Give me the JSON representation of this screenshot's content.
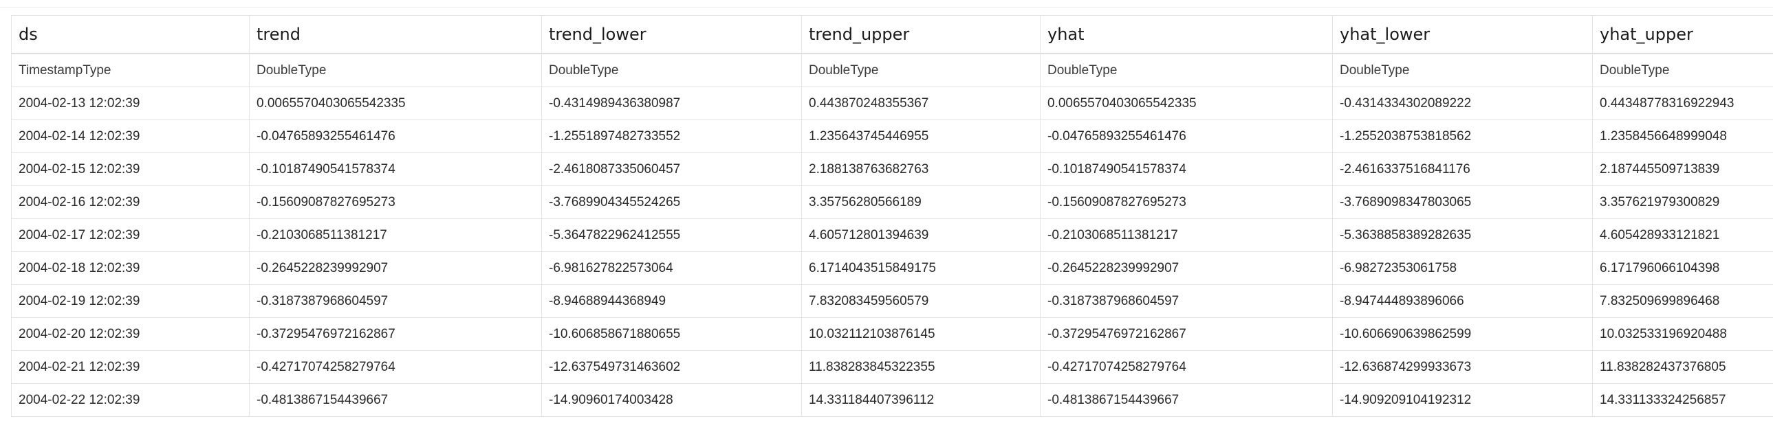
{
  "table": {
    "columns": [
      "ds",
      "trend",
      "trend_lower",
      "trend_upper",
      "yhat",
      "yhat_lower",
      "yhat_upper"
    ],
    "types": [
      "TimestampType",
      "DoubleType",
      "DoubleType",
      "DoubleType",
      "DoubleType",
      "DoubleType",
      "DoubleType"
    ],
    "rows": [
      [
        "2004-02-13 12:02:39",
        "0.0065570403065542335",
        "-0.4314989436380987",
        "0.443870248355367",
        "0.0065570403065542335",
        "-0.4314334302089222",
        "0.44348778316922943"
      ],
      [
        "2004-02-14 12:02:39",
        "-0.04765893255461476",
        "-1.2551897482733552",
        "1.235643745446955",
        "-0.04765893255461476",
        "-1.2552038753818562",
        "1.2358456648999048"
      ],
      [
        "2004-02-15 12:02:39",
        "-0.10187490541578374",
        "-2.4618087335060457",
        "2.188138763682763",
        "-0.10187490541578374",
        "-2.4616337516841176",
        "2.187445509713839"
      ],
      [
        "2004-02-16 12:02:39",
        "-0.15609087827695273",
        "-3.7689904345524265",
        "3.35756280566189",
        "-0.15609087827695273",
        "-3.7689098347803065",
        "3.357621979300829"
      ],
      [
        "2004-02-17 12:02:39",
        "-0.2103068511381217",
        "-5.3647822962412555",
        "4.605712801394639",
        "-0.2103068511381217",
        "-5.3638858389282635",
        "4.605428933121821"
      ],
      [
        "2004-02-18 12:02:39",
        "-0.2645228239992907",
        "-6.981627822573064",
        "6.171404351584917​5",
        "-0.2645228239992907",
        "-6.98272353061758",
        "6.171796066104398"
      ],
      [
        "2004-02-19 12:02:39",
        "-0.3187387968604597",
        "-8.94688944368949",
        "7.832083459560579",
        "-0.3187387968604597",
        "-8.947444893896066",
        "7.832509699896468"
      ],
      [
        "2004-02-20 12:02:39",
        "-0.37295476972162867",
        "-10.606858671880655",
        "10.032112103876145",
        "-0.37295476972162867",
        "-10.606690639862599",
        "10.032533196920488"
      ],
      [
        "2004-02-21 12:02:39",
        "-0.42717074258279764",
        "-12.637549731463602",
        "11.838283845322355",
        "-0.42717074258279764",
        "-12.636874299933673",
        "11.838282437376805"
      ],
      [
        "2004-02-22 12:02:39",
        "-0.4813867154439667",
        "-14.90960174003428",
        "14.331184407396112",
        "-0.4813867154439667",
        "-14.909209104192312",
        "14.331133324256857"
      ]
    ]
  }
}
